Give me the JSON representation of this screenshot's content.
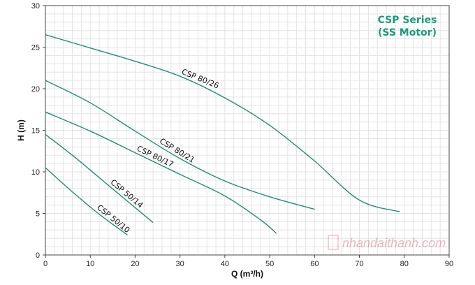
{
  "chart_data": {
    "type": "line",
    "title": "CSP Series",
    "subtitle": "(SS Motor)",
    "xlabel": "Q (m³/h)",
    "ylabel": "H (m)",
    "xlim": [
      0,
      90
    ],
    "ylim": [
      0,
      30
    ],
    "xticks": [
      "0",
      "10",
      "20",
      "30",
      "40",
      "50",
      "60",
      "70",
      "80",
      "90"
    ],
    "yticks": [
      "0",
      "5",
      "10",
      "15",
      "20",
      "25",
      "30"
    ],
    "grid": true,
    "title_color": "#1a9a7c",
    "line_color": "#1f8f7a",
    "series": [
      {
        "name": "CSP 80/26",
        "x": [
          0,
          10,
          20,
          30,
          40,
          50,
          60,
          70,
          79
        ],
        "y": [
          26.5,
          24.9,
          23.3,
          21.5,
          18.9,
          15.6,
          11.3,
          6.6,
          5.2
        ]
      },
      {
        "name": "CSP 80/21",
        "x": [
          0,
          10,
          20,
          30,
          40,
          50,
          60
        ],
        "y": [
          21.0,
          18.3,
          14.9,
          11.6,
          8.9,
          7.0,
          5.5
        ]
      },
      {
        "name": "CSP 80/17",
        "x": [
          0,
          10,
          20,
          30,
          40,
          48,
          51.5
        ],
        "y": [
          17.2,
          14.9,
          12.3,
          9.7,
          7.1,
          4.2,
          2.6
        ]
      },
      {
        "name": "CSP 50/14",
        "x": [
          0,
          6,
          12,
          18,
          24
        ],
        "y": [
          14.5,
          12.0,
          9.3,
          6.6,
          3.9
        ]
      },
      {
        "name": "CSP 50/10",
        "x": [
          0,
          6,
          12,
          18.3
        ],
        "y": [
          10.5,
          7.6,
          4.9,
          2.4
        ]
      }
    ]
  },
  "watermark": "nhandaithanh.com"
}
